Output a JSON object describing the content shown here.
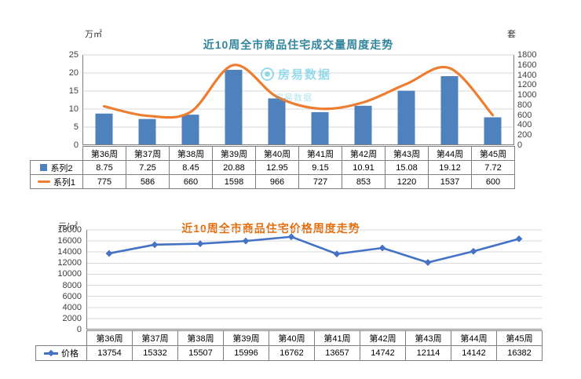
{
  "watermark": {
    "text": "房易数据",
    "color": "#2FB8D8"
  },
  "chart_data": [
    {
      "id": "volume",
      "type": "bar",
      "title": "近10周全市商品住宅成交量周度走势",
      "title_color": "#31859C",
      "left_axis": {
        "unit": "万㎡",
        "min": 0,
        "max": 25,
        "step": 5,
        "ticks": [
          0,
          5,
          10,
          15,
          20,
          25
        ]
      },
      "right_axis": {
        "unit": "套",
        "min": 0,
        "max": 1800,
        "step": 200,
        "ticks": [
          0,
          200,
          400,
          600,
          800,
          1000,
          1200,
          1400,
          1600,
          1800
        ]
      },
      "categories": [
        "第36周",
        "第37周",
        "第38周",
        "第39周",
        "第40周",
        "第41周",
        "第42周",
        "第43周",
        "第44周",
        "第45周"
      ],
      "series": [
        {
          "name": "系列2",
          "marker": "bar",
          "axis": "left",
          "color": "#4F81BD",
          "values": [
            8.75,
            7.25,
            8.45,
            20.88,
            12.95,
            9.15,
            10.91,
            15.08,
            19.12,
            7.72
          ]
        },
        {
          "name": "系列1",
          "marker": "line",
          "axis": "right",
          "color": "#ED7D31",
          "values": [
            775,
            586,
            660,
            1598,
            966,
            727,
            853,
            1220,
            1537,
            600
          ]
        }
      ],
      "grid": true,
      "legend_position": "table-left"
    },
    {
      "id": "price",
      "type": "line",
      "title": "近10周全市商品住宅价格周度走势",
      "title_color": "#E36C0A",
      "left_axis": {
        "unit": "元/㎡",
        "min": 0,
        "max": 18000,
        "step": 2000,
        "ticks": [
          0,
          2000,
          4000,
          6000,
          8000,
          10000,
          12000,
          14000,
          16000,
          18000
        ]
      },
      "categories": [
        "第36周",
        "第37周",
        "第38周",
        "第39周",
        "第40周",
        "第41周",
        "第42周",
        "第43周",
        "第44周",
        "第45周"
      ],
      "series": [
        {
          "name": "价格",
          "marker": "diamond-line",
          "axis": "left",
          "color": "#4472C4",
          "values": [
            13754,
            15332,
            15507,
            15996,
            16762,
            13657,
            14742,
            12114,
            14142,
            16382
          ]
        }
      ],
      "grid": true,
      "legend_position": "table-left"
    }
  ]
}
